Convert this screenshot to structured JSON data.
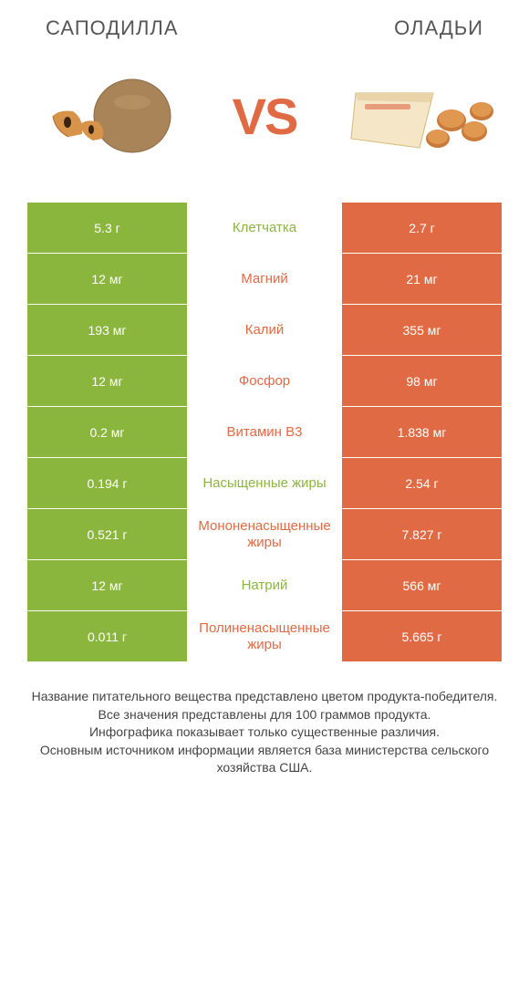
{
  "header": {
    "left_title": "САПОДИЛЛА",
    "right_title": "ОЛАДЬИ"
  },
  "vs_label": "VS",
  "colors": {
    "green": "#8bb63e",
    "orange": "#e06a44",
    "text": "#333333",
    "background": "#ffffff"
  },
  "rows": [
    {
      "left": "5.3 г",
      "label": "Клетчатка",
      "right": "2.7 г",
      "winner": "green"
    },
    {
      "left": "12 мг",
      "label": "Магний",
      "right": "21 мг",
      "winner": "orange"
    },
    {
      "left": "193 мг",
      "label": "Калий",
      "right": "355 мг",
      "winner": "orange"
    },
    {
      "left": "12 мг",
      "label": "Фосфор",
      "right": "98 мг",
      "winner": "orange"
    },
    {
      "left": "0.2 мг",
      "label": "Витамин B3",
      "right": "1.838 мг",
      "winner": "orange"
    },
    {
      "left": "0.194 г",
      "label": "Насыщенные жиры",
      "right": "2.54 г",
      "winner": "green"
    },
    {
      "left": "0.521 г",
      "label": "Мононенасыщенные жиры",
      "right": "7.827 г",
      "winner": "orange"
    },
    {
      "left": "12 мг",
      "label": "Натрий",
      "right": "566 мг",
      "winner": "green"
    },
    {
      "left": "0.011 г",
      "label": "Полиненасыщенные жиры",
      "right": "5.665 г",
      "winner": "orange"
    }
  ],
  "footnote": {
    "line1": "Название питательного вещества представлено цветом продукта-победителя.",
    "line2": "Все значения представлены для 100 граммов продукта.",
    "line3": "Инфографика показывает только существенные различия.",
    "line4": "Основным источником информации является база министерства сельского хозяйства США."
  }
}
